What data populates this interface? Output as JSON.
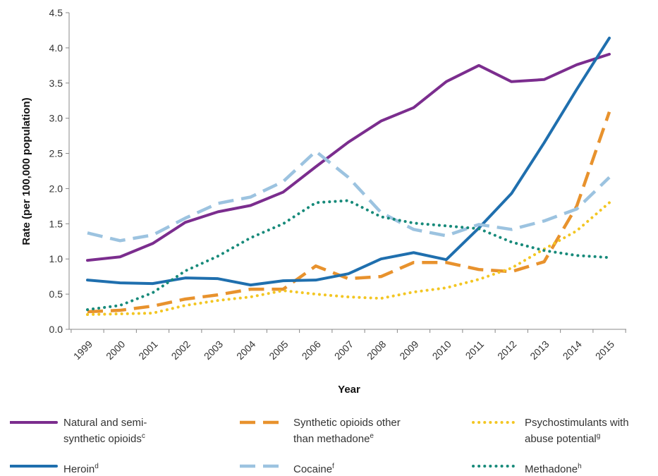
{
  "chart_data": {
    "type": "line",
    "xlabel": "Year",
    "ylabel": "Rate (per 100,000 population)",
    "ylim": [
      0,
      4.5
    ],
    "yticks": [
      "0.0",
      "0.5",
      "1.0",
      "1.5",
      "2.0",
      "2.5",
      "3.0",
      "3.5",
      "4.0",
      "4.5"
    ],
    "categories": [
      "1999",
      "2000",
      "2001",
      "2002",
      "2003",
      "2004",
      "2005",
      "2006",
      "2007",
      "2008",
      "2009",
      "2010",
      "2011",
      "2012",
      "2013",
      "2014",
      "2015"
    ],
    "grid": false,
    "legend_position": "bottom",
    "series": [
      {
        "name": "Natural and semi-synthetic opioids",
        "name_lines": [
          "Natural and semi-",
          "synthetic opioids"
        ],
        "sup": "c",
        "color": "#7b2d8e",
        "style": "solid",
        "values": [
          0.98,
          1.03,
          1.22,
          1.52,
          1.67,
          1.76,
          1.95,
          2.31,
          2.66,
          2.96,
          3.15,
          3.52,
          3.75,
          3.52,
          3.55,
          3.76,
          3.91
        ]
      },
      {
        "name": "Synthetic opioids other than methadone",
        "name_lines": [
          "Synthetic opioids other",
          "than methadone"
        ],
        "sup": "e",
        "color": "#e8922d",
        "style": "dashed",
        "values": [
          0.25,
          0.27,
          0.33,
          0.43,
          0.49,
          0.57,
          0.57,
          0.9,
          0.72,
          0.75,
          0.95,
          0.95,
          0.85,
          0.82,
          0.96,
          1.75,
          3.09
        ]
      },
      {
        "name": "Psychostimulants with abuse potential",
        "name_lines": [
          "Psychostimulants with",
          "abuse potential"
        ],
        "sup": "g",
        "color": "#f3c623",
        "style": "dotted",
        "values": [
          0.21,
          0.22,
          0.23,
          0.34,
          0.41,
          0.46,
          0.55,
          0.5,
          0.46,
          0.44,
          0.53,
          0.59,
          0.71,
          0.87,
          1.14,
          1.4,
          1.8
        ]
      },
      {
        "name": "Heroin",
        "name_lines": [
          "Heroin"
        ],
        "sup": "d",
        "color": "#1f6fae",
        "style": "solid",
        "values": [
          0.7,
          0.66,
          0.65,
          0.73,
          0.72,
          0.63,
          0.69,
          0.7,
          0.79,
          1.0,
          1.09,
          0.99,
          1.44,
          1.93,
          2.65,
          3.41,
          4.14
        ]
      },
      {
        "name": "Cocaine",
        "name_lines": [
          "Cocaine"
        ],
        "sup": "f",
        "color": "#9cc3e0",
        "style": "dashed",
        "values": [
          1.37,
          1.26,
          1.34,
          1.58,
          1.79,
          1.88,
          2.1,
          2.53,
          2.16,
          1.66,
          1.42,
          1.33,
          1.49,
          1.42,
          1.54,
          1.71,
          2.16
        ]
      },
      {
        "name": "Methadone",
        "name_lines": [
          "Methadone"
        ],
        "sup": "h",
        "color": "#178a7a",
        "style": "dotted",
        "values": [
          0.28,
          0.34,
          0.52,
          0.83,
          1.04,
          1.3,
          1.5,
          1.8,
          1.83,
          1.6,
          1.51,
          1.47,
          1.43,
          1.24,
          1.12,
          1.05,
          1.02
        ]
      }
    ]
  }
}
